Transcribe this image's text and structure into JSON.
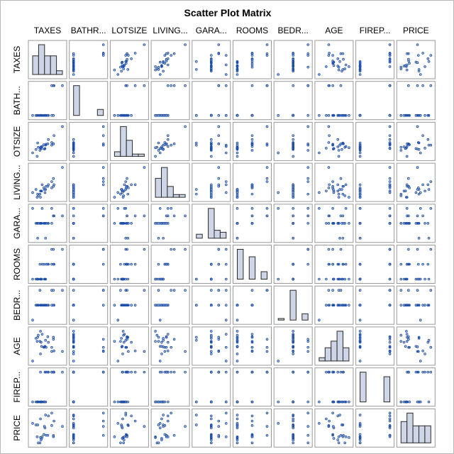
{
  "chart_data": {
    "type": "scatter-matrix",
    "title": "Scatter Plot Matrix",
    "column_labels": [
      "TAXES",
      "BATHR...",
      "LOTSIZE",
      "LIVING...",
      "GARA...",
      "ROOMS",
      "BEDR...",
      "AGE",
      "FIREP...",
      "PRICE"
    ],
    "row_labels": [
      "TAXES",
      "BATH...",
      "OTSIZE",
      "LIVING...",
      "GARA...",
      "ROOMS",
      "BEDR...",
      "AGE",
      "FIREP...",
      "PRICE"
    ],
    "diagonal": "histogram",
    "colors": {
      "points": "#1f4fa8",
      "bar_fill": "#cdd5e6",
      "bar_stroke": "#2a2a2a",
      "cell_border": "#9a9a9a",
      "text": "#000000"
    },
    "variables": [
      {
        "name": "TAXES",
        "values": [
          4.9,
          5.0,
          5.1,
          4.6,
          4.4,
          5.3,
          6.3,
          5.2,
          5.8,
          5.6,
          6.0,
          7.3,
          7.3,
          8.9,
          5.0,
          7.4,
          6.4,
          7.0,
          4.5,
          5.9,
          4.2,
          3.6,
          5.7,
          7.0
        ]
      },
      {
        "name": "BATHROOMS",
        "values": [
          1,
          1,
          1,
          1,
          1,
          1,
          1,
          1,
          1,
          1,
          1,
          2,
          1,
          2,
          1,
          2,
          1,
          1,
          1,
          1,
          1,
          1,
          1,
          2
        ]
      },
      {
        "name": "LOTSIZE",
        "values": [
          3.5,
          4.1,
          4.3,
          4.2,
          2.1,
          4.4,
          5.0,
          3.9,
          3.9,
          4.8,
          4.9,
          5.0,
          5.0,
          9.0,
          4.0,
          6.9,
          6.0,
          5.3,
          5.2,
          4.7,
          3.7,
          2.9,
          3.8,
          4.7
        ]
      },
      {
        "name": "LIVINGSPACE",
        "values": [
          1.0,
          0.8,
          1.2,
          0.9,
          0.8,
          1.6,
          1.5,
          1.2,
          1.1,
          1.4,
          1.5,
          2.0,
          1.5,
          2.7,
          1.2,
          1.6,
          1.6,
          1.4,
          1.0,
          1.3,
          1.3,
          1.1,
          1.3,
          1.8
        ]
      },
      {
        "name": "GARAGE",
        "values": [
          1,
          1,
          1,
          1,
          1,
          2,
          1,
          1,
          1,
          1,
          1,
          1.5,
          1.5,
          1.5,
          1,
          1.5,
          1,
          1,
          0,
          0,
          1,
          2,
          1,
          2
        ]
      },
      {
        "name": "ROOMS",
        "values": [
          7,
          6,
          6,
          6,
          6,
          7,
          7,
          6,
          6,
          7,
          7,
          8,
          7,
          8,
          6,
          7,
          7,
          7,
          6,
          6,
          6,
          6,
          6,
          8
        ]
      },
      {
        "name": "BEDROOMS",
        "values": [
          4,
          3,
          3,
          3,
          3,
          3,
          3,
          3,
          3,
          3,
          3,
          4,
          3,
          4,
          3,
          3,
          3,
          3,
          3,
          3,
          3,
          2,
          3,
          4
        ]
      },
      {
        "name": "AGE",
        "values": [
          42,
          62,
          40,
          54,
          42,
          56,
          51,
          32,
          32,
          30,
          30,
          46,
          50,
          22,
          17,
          23,
          40,
          22,
          50,
          44,
          48,
          3,
          31,
          30
        ]
      },
      {
        "name": "FIREPLACES",
        "values": [
          0,
          0,
          0,
          0,
          0,
          0,
          1,
          0,
          1,
          0,
          1,
          1,
          1,
          1,
          1,
          1,
          1,
          1,
          0,
          0,
          0,
          0,
          0,
          1
        ]
      },
      {
        "name": "PRICE",
        "values": [
          25.9,
          29.5,
          27.9,
          25.9,
          29.9,
          29.9,
          30.9,
          28.9,
          35.9,
          31.5,
          31.0,
          30.9,
          30.0,
          36.9,
          41.9,
          40.5,
          43.9,
          37.5,
          37.9,
          44.5,
          37.9,
          38.9,
          36.9,
          45.8
        ]
      }
    ]
  }
}
